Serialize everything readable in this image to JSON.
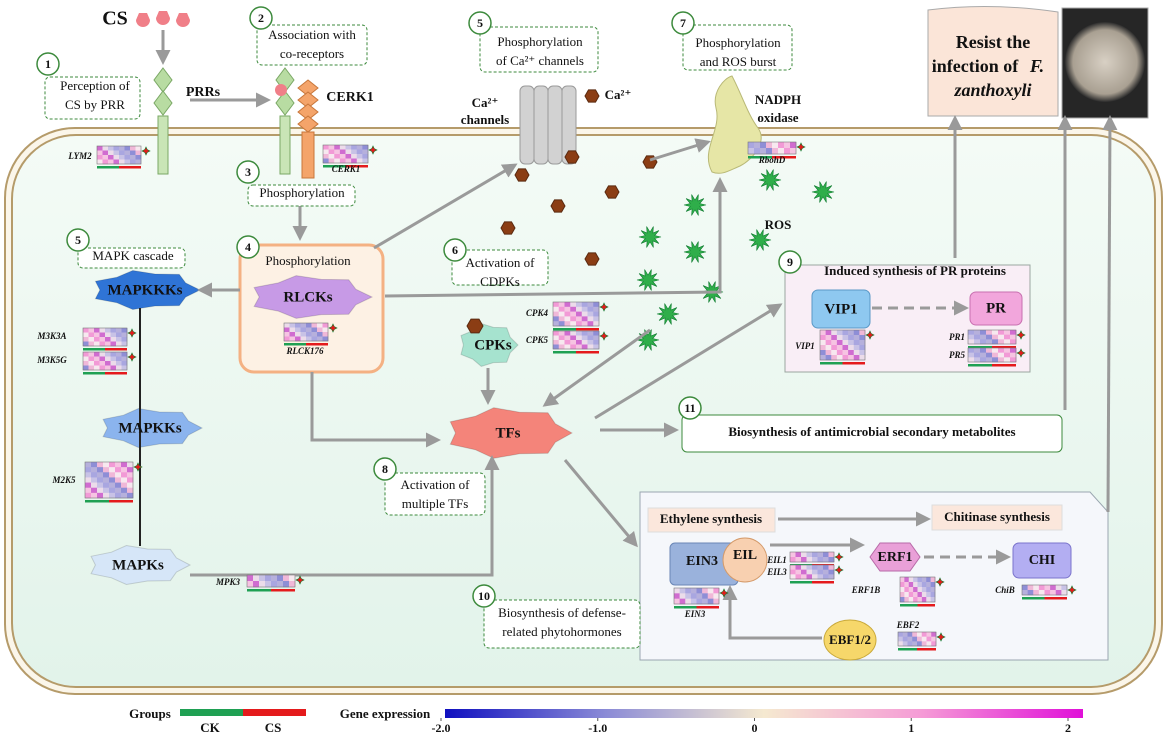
{
  "signal": "CS",
  "steps": [
    {
      "number": "1",
      "lines": [
        "Perception of",
        "CS by PRR"
      ]
    },
    {
      "number": "2",
      "lines": [
        "Association with",
        "co-receptors"
      ]
    },
    {
      "number": "3",
      "lines": [
        "Phosphorylation"
      ]
    },
    {
      "number": "4",
      "lines": [
        "Phosphorylation"
      ]
    },
    {
      "number": "5",
      "lines": [
        "MAPK cascade"
      ]
    },
    {
      "number": "5",
      "lines": [
        "Phosphorylation",
        "of Ca²⁺ channels"
      ]
    },
    {
      "number": "6",
      "lines": [
        "Activation of",
        "CDPKs"
      ]
    },
    {
      "number": "7",
      "lines": [
        "Phosphorylation",
        "and ROS burst"
      ]
    },
    {
      "number": "8",
      "lines": [
        "Activation of",
        "multiple TFs"
      ]
    },
    {
      "number": "9",
      "lines": [
        "Induced synthesis of PR proteins"
      ]
    },
    {
      "number": "10",
      "lines": [
        "Biosynthesis of defense-",
        "related phytohormones"
      ]
    },
    {
      "number": "11",
      "lines": [
        "Biosynthesis of antimicrobial secondary metabolites"
      ]
    }
  ],
  "nodes": {
    "prrs": "PRRs",
    "cerk1": "CERK1",
    "ca_channels": [
      "Ca²⁺",
      "channels"
    ],
    "ca_ion": "Ca²⁺",
    "nadph": [
      "NADPH",
      "oxidase"
    ],
    "ros": "ROS",
    "rlcks": "RLCKs",
    "mapkkks": "MAPKKKs",
    "mapkks": "MAPKKs",
    "mapks": "MAPKs",
    "cpks": "CPKs",
    "tfs": "TFs",
    "vip1": "VIP1",
    "pr": "PR",
    "ethylene": "Ethylene synthesis",
    "chitinase": "Chitinase synthesis",
    "ein3": "EIN3",
    "eil": "EIL",
    "erf1": "ERF1",
    "chi": "CHI",
    "ebf": "EBF1/2"
  },
  "genes": [
    "LYM2",
    "CERK1",
    "RbohD",
    "RLCK176",
    "M3K3A",
    "M3K5G",
    "M2K5",
    "MPK3",
    "CPK4",
    "CPK5",
    "VIP1",
    "PR1",
    "PR5",
    "EIL1",
    "EIL3",
    "ERF1B",
    "ChiB",
    "EIN3",
    "EBF2"
  ],
  "result": {
    "line1": "Resist the",
    "line2": "infection of",
    "species": [
      "F.",
      "zanthoxyli"
    ]
  },
  "legend": {
    "groups_title": "Groups",
    "groups": [
      {
        "name": "CK",
        "color": "#1fa053"
      },
      {
        "name": "CS",
        "color": "#e41a1c"
      }
    ],
    "scale_title": "Gene expression",
    "ticks": [
      {
        "value": -2,
        "label": "-2.0"
      },
      {
        "value": -1,
        "label": "-1.0"
      },
      0,
      1,
      2
    ]
  }
}
